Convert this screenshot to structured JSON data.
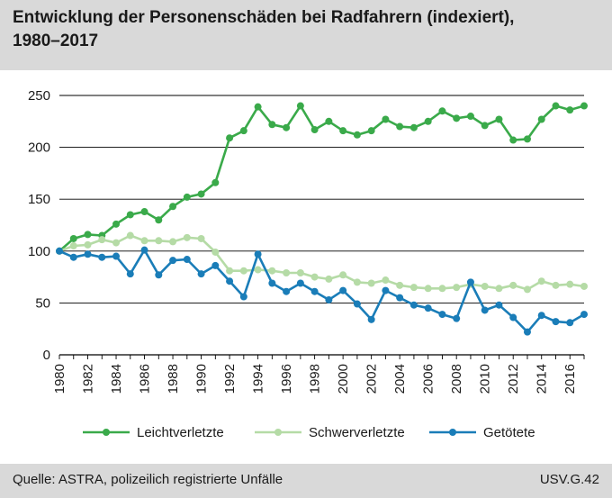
{
  "header": {
    "title_line1": "Entwicklung der Personenschäden bei Radfahrern (indexiert),",
    "title_line2": "1980–2017"
  },
  "footer": {
    "source": "Quelle: ASTRA, polizeilich registrierte Unfälle",
    "code": "USV.G.42"
  },
  "colors": {
    "leicht": "#3aaa4a",
    "schwer": "#b5dba6",
    "getoetet": "#1a7db8",
    "gridline": "#000000",
    "panel": "#d9d9d9"
  },
  "chart_data": {
    "type": "line",
    "title": "Entwicklung der Personenschäden bei Radfahrern (indexiert), 1980–2017",
    "xlabel": "",
    "ylabel": "",
    "x": [
      1980,
      1981,
      1982,
      1983,
      1984,
      1985,
      1986,
      1987,
      1988,
      1989,
      1990,
      1991,
      1992,
      1993,
      1994,
      1995,
      1996,
      1997,
      1998,
      1999,
      2000,
      2001,
      2002,
      2003,
      2004,
      2005,
      2006,
      2007,
      2008,
      2009,
      2010,
      2011,
      2012,
      2013,
      2014,
      2015,
      2016,
      2017
    ],
    "xticks": [
      "1980",
      "1982",
      "1984",
      "1986",
      "1988",
      "1990",
      "1992",
      "1994",
      "1996",
      "1998",
      "2000",
      "2002",
      "2004",
      "2006",
      "2008",
      "2010",
      "2012",
      "2014",
      "2016"
    ],
    "xlim": [
      1980,
      2017
    ],
    "yticks": [
      "0",
      "50",
      "100",
      "150",
      "200",
      "250"
    ],
    "ylim": [
      0,
      250
    ],
    "grid": true,
    "legend_position": "bottom",
    "series": [
      {
        "name": "Leichtverletzte",
        "color_key": "leicht",
        "values": [
          100,
          112,
          116,
          115,
          126,
          135,
          138,
          130,
          143,
          152,
          155,
          166,
          209,
          216,
          239,
          222,
          219,
          240,
          217,
          225,
          216,
          212,
          216,
          227,
          220,
          219,
          225,
          235,
          228,
          230,
          221,
          227,
          207,
          208,
          227,
          240,
          236,
          240
        ]
      },
      {
        "name": "Schwerverletzte",
        "color_key": "schwer",
        "values": [
          100,
          105,
          106,
          111,
          108,
          115,
          110,
          110,
          109,
          113,
          112,
          99,
          81,
          81,
          82,
          81,
          79,
          79,
          75,
          73,
          77,
          70,
          69,
          72,
          67,
          65,
          64,
          64,
          65,
          68,
          66,
          64,
          67,
          63,
          71,
          67,
          68,
          66
        ]
      },
      {
        "name": "Getötete",
        "color_key": "getoetet",
        "values": [
          100,
          94,
          97,
          94,
          95,
          78,
          101,
          77,
          91,
          92,
          78,
          86,
          71,
          56,
          97,
          69,
          61,
          69,
          61,
          53,
          62,
          49,
          34,
          62,
          55,
          48,
          45,
          39,
          35,
          70,
          43,
          48,
          36,
          22,
          38,
          32,
          31,
          39
        ]
      }
    ]
  }
}
